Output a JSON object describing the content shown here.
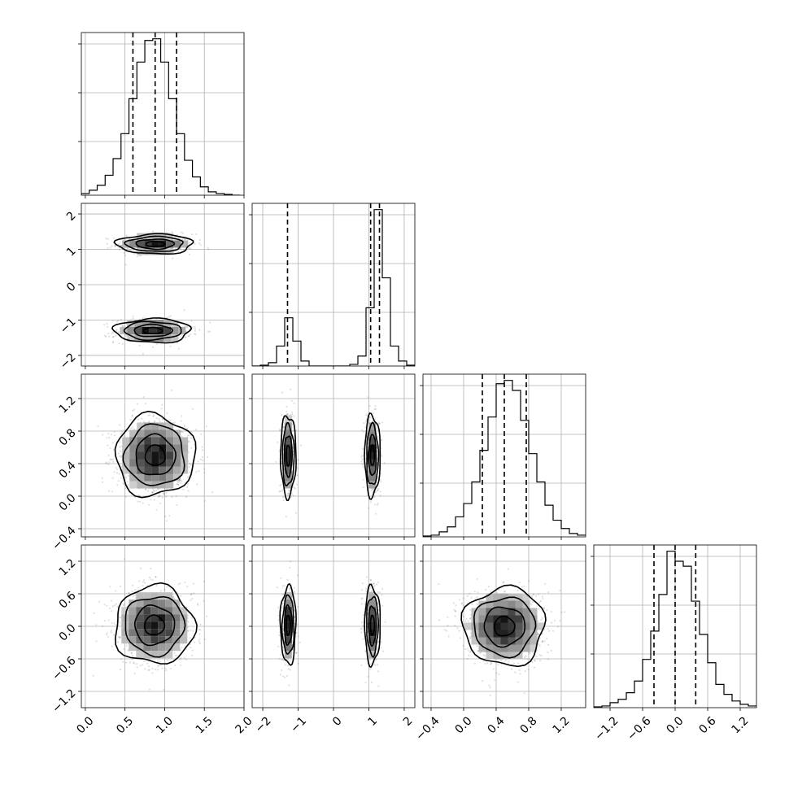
{
  "chart_data": {
    "type": "corner",
    "params": [
      {
        "range": [
          -0.05,
          2.0
        ],
        "ticks": [
          0.0,
          0.5,
          1.0,
          1.5,
          2.0
        ],
        "tick_labels": [
          "0.0",
          "0.5",
          "1.0",
          "1.5",
          "2.0"
        ],
        "quantiles": [
          0.6,
          0.88,
          1.15
        ]
      },
      {
        "range": [
          -2.3,
          2.3
        ],
        "ticks": [
          -2,
          -1,
          0,
          1,
          2
        ],
        "tick_labels": [
          "−2",
          "−1",
          "0",
          "1",
          "2"
        ],
        "quantiles": [
          -1.3,
          1.05,
          1.3
        ]
      },
      {
        "range": [
          -0.5,
          1.5
        ],
        "ticks": [
          -0.4,
          0.0,
          0.4,
          0.8,
          1.2
        ],
        "tick_labels": [
          "−0.4",
          "0.0",
          "0.4",
          "0.8",
          "1.2"
        ],
        "quantiles": [
          0.23,
          0.5,
          0.77
        ]
      },
      {
        "range": [
          -1.5,
          1.5
        ],
        "ticks": [
          -1.2,
          -0.6,
          0.0,
          0.6,
          1.2
        ],
        "tick_labels": [
          "−1.2",
          "−0.6",
          "0.0",
          "0.6",
          "1.2"
        ],
        "quantiles": [
          -0.39,
          0.0,
          0.38
        ]
      }
    ],
    "histograms": [
      {
        "edges": [
          -0.05,
          0.05,
          0.15,
          0.25,
          0.35,
          0.45,
          0.55,
          0.65,
          0.75,
          0.85,
          0.95,
          1.05,
          1.15,
          1.25,
          1.35,
          1.45,
          1.55,
          1.65,
          1.75,
          1.85,
          1.95
        ],
        "counts": [
          1,
          3,
          6,
          12,
          22,
          37,
          58,
          80,
          93,
          94,
          80,
          58,
          37,
          21,
          11,
          5,
          2,
          1,
          0.5,
          0
        ]
      },
      {
        "edges": [
          -2.3,
          -2.07,
          -1.84,
          -1.61,
          -1.38,
          -1.15,
          -0.92,
          -0.69,
          -0.46,
          -0.23,
          0.0,
          0.23,
          0.46,
          0.69,
          0.92,
          1.15,
          1.38,
          1.61,
          1.84,
          2.07,
          2.3
        ],
        "counts": [
          0,
          0.5,
          2,
          12,
          29,
          15,
          3,
          0,
          0,
          0,
          0,
          0,
          1,
          6,
          35,
          94,
          53,
          12,
          3,
          0.5
        ]
      },
      {
        "edges": [
          -0.5,
          -0.4,
          -0.3,
          -0.2,
          -0.1,
          0.0,
          0.1,
          0.2,
          0.3,
          0.4,
          0.5,
          0.6,
          0.7,
          0.8,
          0.9,
          1.0,
          1.1,
          1.2,
          1.3,
          1.4,
          1.5
        ],
        "counts": [
          0.5,
          1,
          3,
          6,
          12,
          20,
          33,
          52,
          72,
          92,
          94,
          88,
          70,
          50,
          33,
          19,
          10,
          5,
          2,
          1
        ]
      },
      {
        "edges": [
          -1.5,
          -1.35,
          -1.2,
          -1.05,
          -0.9,
          -0.75,
          -0.6,
          -0.45,
          -0.3,
          -0.15,
          0.0,
          0.15,
          0.3,
          0.45,
          0.6,
          0.75,
          0.9,
          1.05,
          1.2,
          1.35,
          1.5
        ],
        "counts": [
          0.5,
          1,
          3,
          5,
          9,
          16,
          29,
          46,
          68,
          94,
          88,
          85,
          64,
          44,
          27,
          14,
          8,
          4,
          2,
          1
        ]
      }
    ],
    "pair_distributions": [
      {
        "row": 1,
        "col": 0,
        "modes": [
          {
            "center": [
              0.88,
              1.15
            ],
            "sigma": [
              0.24,
              0.14
            ]
          },
          {
            "center": [
              0.85,
              -1.3
            ],
            "sigma": [
              0.24,
              0.17
            ]
          }
        ]
      },
      {
        "row": 2,
        "col": 0,
        "modes": [
          {
            "center": [
              0.88,
              0.5
            ],
            "sigma": [
              0.25,
              0.25
            ]
          }
        ]
      },
      {
        "row": 2,
        "col": 1,
        "modes": [
          {
            "center": [
              -1.28,
              0.5
            ],
            "sigma": [
              0.11,
              0.25
            ]
          },
          {
            "center": [
              1.1,
              0.5
            ],
            "sigma": [
              0.11,
              0.25
            ]
          }
        ]
      },
      {
        "row": 3,
        "col": 0,
        "modes": [
          {
            "center": [
              0.87,
              0.02
            ],
            "sigma": [
              0.25,
              0.36
            ]
          }
        ]
      },
      {
        "row": 3,
        "col": 1,
        "modes": [
          {
            "center": [
              -1.28,
              0.02
            ],
            "sigma": [
              0.11,
              0.36
            ]
          },
          {
            "center": [
              1.1,
              0.02
            ],
            "sigma": [
              0.11,
              0.36
            ]
          }
        ]
      },
      {
        "row": 3,
        "col": 2,
        "modes": [
          {
            "center": [
              0.5,
              0.0
            ],
            "sigma": [
              0.25,
              0.36
            ]
          }
        ]
      }
    ],
    "contour_levels_sigma": [
      0.5,
      1.0,
      1.5,
      2.0
    ],
    "grid": true
  }
}
